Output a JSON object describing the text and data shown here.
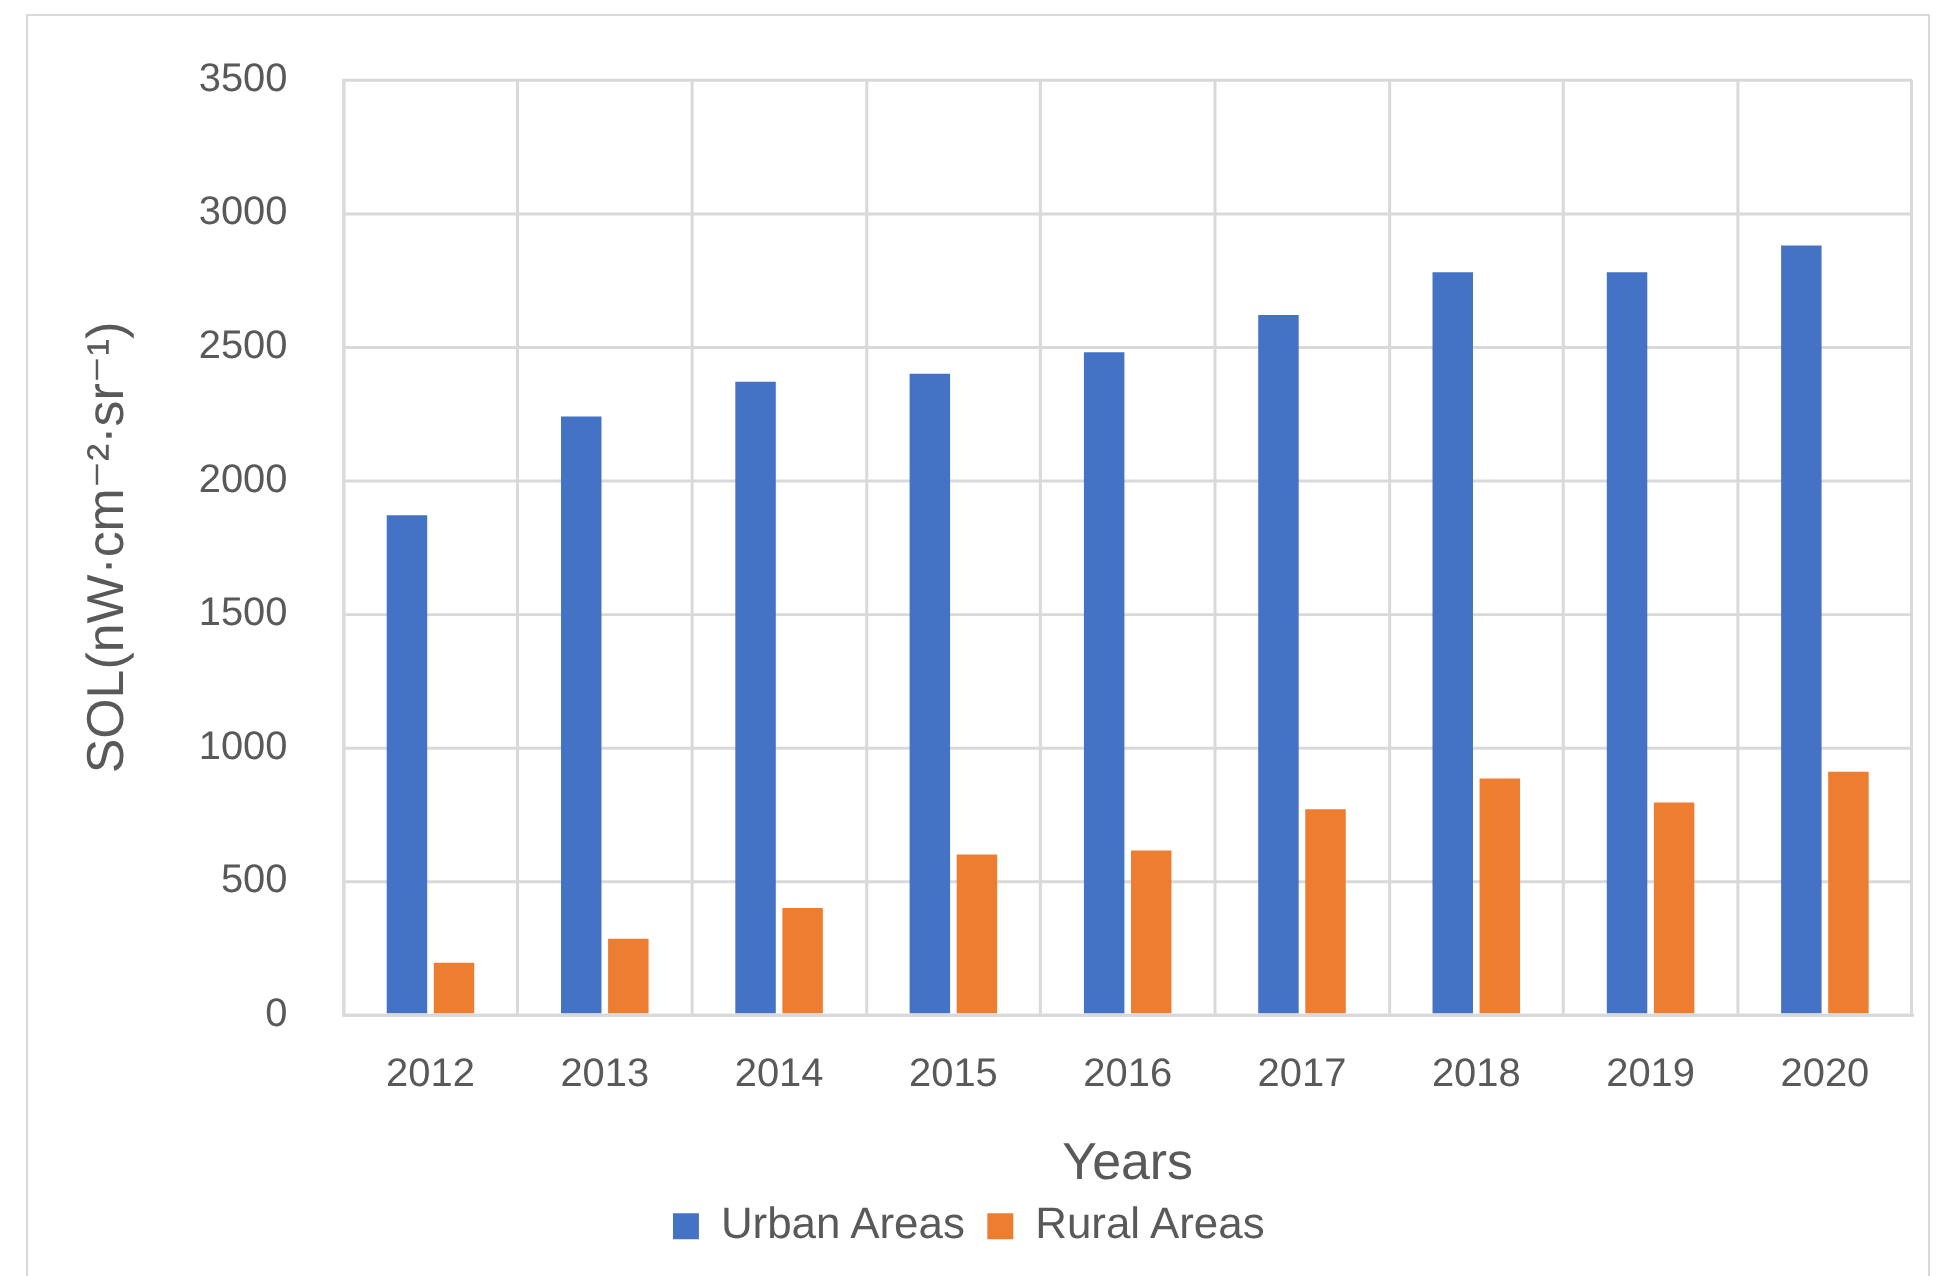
{
  "chart_data": {
    "type": "bar",
    "xlabel": "Years",
    "ylabel": "SOL(nW·cm⁻²·sr⁻¹)",
    "categories": [
      "2012",
      "2013",
      "2014",
      "2015",
      "2016",
      "2017",
      "2018",
      "2019",
      "2020"
    ],
    "series": [
      {
        "name": "Urban Areas",
        "color": "#4472c4",
        "values": [
          1870,
          2240,
          2370,
          2400,
          2480,
          2620,
          2780,
          2780,
          2880
        ]
      },
      {
        "name": "Rural Areas",
        "color": "#ed7d31",
        "values": [
          195,
          285,
          400,
          600,
          615,
          770,
          885,
          795,
          910
        ]
      }
    ],
    "ylim": [
      0,
      3500
    ],
    "yticks": [
      0,
      500,
      1000,
      1500,
      2000,
      2500,
      3000,
      3500
    ],
    "grid": true,
    "legend": "bottom"
  }
}
